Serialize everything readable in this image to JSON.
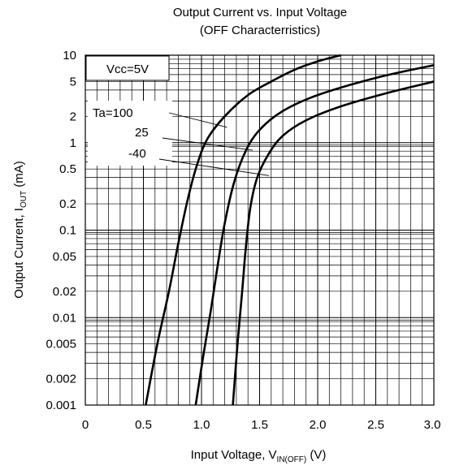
{
  "chart_data": {
    "type": "line",
    "title": "Output Current vs. Input Voltage",
    "subtitle": "(OFF Characterristics)",
    "xlabel": {
      "main": "Input Voltage, V",
      "sub": "IN(OFF)",
      "unit": "  (V)"
    },
    "ylabel": {
      "main": "Output Current, I",
      "sub": "OUT",
      "unit": " (mA)"
    },
    "x_scale": "linear",
    "y_scale": "log",
    "xlim": [
      0,
      3.0
    ],
    "ylim": [
      0.001,
      10
    ],
    "x_ticks": [
      {
        "value": 0,
        "label": "0"
      },
      {
        "value": 0.5,
        "label": "0.5"
      },
      {
        "value": 1.0,
        "label": "1.0"
      },
      {
        "value": 1.5,
        "label": "1.5"
      },
      {
        "value": 2.0,
        "label": "2.0"
      },
      {
        "value": 2.5,
        "label": "2.5"
      },
      {
        "value": 3.0,
        "label": "3.0"
      }
    ],
    "y_ticks": [
      {
        "value": 10,
        "label": "10"
      },
      {
        "value": 5,
        "label": "5"
      },
      {
        "value": 2,
        "label": "2"
      },
      {
        "value": 1,
        "label": "1"
      },
      {
        "value": 0.5,
        "label": "0.5"
      },
      {
        "value": 0.2,
        "label": "0.2"
      },
      {
        "value": 0.1,
        "label": "0.1"
      },
      {
        "value": 0.05,
        "label": "0.05"
      },
      {
        "value": 0.02,
        "label": "0.02"
      },
      {
        "value": 0.01,
        "label": "0.01"
      },
      {
        "value": 0.005,
        "label": "0.005"
      },
      {
        "value": 0.002,
        "label": "0.002"
      },
      {
        "value": 0.001,
        "label": "0.001"
      }
    ],
    "grid": true,
    "condition_label": "Vcc=5V",
    "legend_title": "Ta=100",
    "series": [
      {
        "name": "100",
        "x": [
          0.52,
          0.62,
          0.72,
          0.8,
          0.88,
          0.96,
          1.05,
          1.2,
          1.4,
          1.6,
          1.8,
          2.0,
          2.2
        ],
        "y": [
          0.001,
          0.005,
          0.02,
          0.07,
          0.22,
          0.55,
          1.1,
          2.0,
          3.5,
          5.0,
          6.8,
          8.5,
          10.0
        ]
      },
      {
        "name": "25",
        "x": [
          0.95,
          1.02,
          1.08,
          1.14,
          1.2,
          1.28,
          1.38,
          1.5,
          1.7,
          2.0,
          2.5,
          3.0
        ],
        "y": [
          0.001,
          0.004,
          0.012,
          0.04,
          0.12,
          0.35,
          0.8,
          1.4,
          2.3,
          3.5,
          5.5,
          7.7
        ]
      },
      {
        "name": "-40",
        "x": [
          1.27,
          1.31,
          1.35,
          1.38,
          1.42,
          1.48,
          1.58,
          1.7,
          1.9,
          2.2,
          2.6,
          3.0
        ],
        "y": [
          0.001,
          0.005,
          0.02,
          0.06,
          0.18,
          0.4,
          0.75,
          1.2,
          1.8,
          2.6,
          3.7,
          5.0
        ]
      }
    ],
    "color": "#000000"
  }
}
